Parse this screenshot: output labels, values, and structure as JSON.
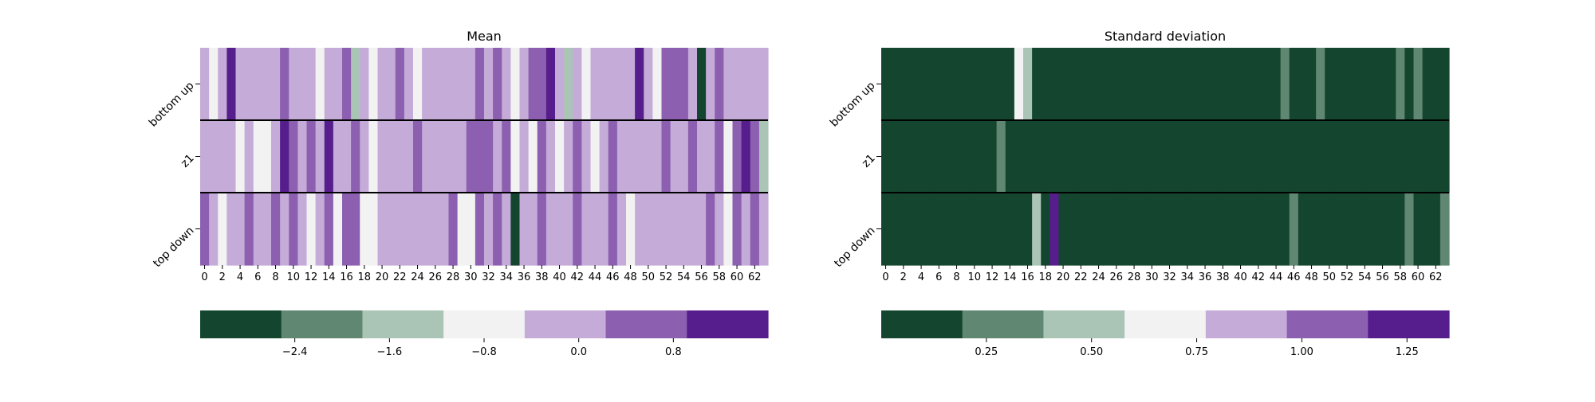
{
  "colors": {
    "palette": [
      "#14452f",
      "#5f8771",
      "#aac4b6",
      "#f2f2f2",
      "#c4abd8",
      "#8c5fb0",
      "#561d8c"
    ],
    "separator": "#000000"
  },
  "chart_data": [
    {
      "type": "heatmap",
      "title": "Mean",
      "rows": [
        "bottom up",
        "z1",
        "top down"
      ],
      "columns": [
        0,
        1,
        2,
        3,
        4,
        5,
        6,
        7,
        8,
        9,
        10,
        11,
        12,
        13,
        14,
        15,
        16,
        17,
        18,
        19,
        20,
        21,
        22,
        23,
        24,
        25,
        26,
        27,
        28,
        29,
        30,
        31,
        32,
        33,
        34,
        35,
        36,
        37,
        38,
        39,
        40,
        41,
        42,
        43,
        44,
        45,
        46,
        47,
        48,
        49,
        50,
        51,
        52,
        53,
        54,
        55,
        56,
        57,
        58,
        59,
        60,
        61,
        62,
        63
      ],
      "x_tick_labels": [
        "0",
        "2",
        "4",
        "6",
        "8",
        "10",
        "12",
        "14",
        "16",
        "18",
        "20",
        "22",
        "24",
        "26",
        "28",
        "30",
        "32",
        "34",
        "36",
        "38",
        "40",
        "42",
        "44",
        "46",
        "48",
        "50",
        "52",
        "54",
        "56",
        "58",
        "60",
        "62"
      ],
      "color_levels": [
        [
          4,
          3,
          4,
          6,
          4,
          4,
          4,
          4,
          4,
          5,
          4,
          4,
          4,
          3,
          4,
          4,
          5,
          2,
          4,
          3,
          4,
          4,
          5,
          4,
          3,
          4,
          4,
          4,
          4,
          4,
          4,
          5,
          4,
          5,
          4,
          3,
          4,
          5,
          5,
          6,
          4,
          2,
          4,
          3,
          4,
          4,
          4,
          4,
          4,
          6,
          4,
          3,
          5,
          5,
          5,
          4,
          0,
          4,
          5,
          4,
          4,
          4,
          4,
          4
        ],
        [
          4,
          4,
          4,
          4,
          3,
          4,
          3,
          3,
          4,
          6,
          5,
          4,
          5,
          4,
          6,
          4,
          4,
          5,
          4,
          3,
          4,
          4,
          4,
          4,
          5,
          4,
          4,
          4,
          4,
          4,
          5,
          5,
          5,
          4,
          5,
          3,
          4,
          3,
          5,
          4,
          3,
          4,
          5,
          4,
          3,
          4,
          5,
          4,
          4,
          4,
          4,
          4,
          5,
          4,
          4,
          5,
          4,
          4,
          5,
          3,
          5,
          6,
          5,
          2
        ],
        [
          5,
          4,
          3,
          4,
          4,
          5,
          4,
          4,
          5,
          4,
          5,
          4,
          3,
          4,
          5,
          3,
          5,
          5,
          3,
          3,
          4,
          4,
          4,
          4,
          4,
          4,
          4,
          4,
          5,
          3,
          3,
          5,
          4,
          5,
          4,
          0,
          4,
          4,
          5,
          4,
          4,
          4,
          5,
          4,
          4,
          4,
          5,
          4,
          3,
          4,
          4,
          4,
          4,
          4,
          4,
          4,
          4,
          5,
          4,
          3,
          5,
          4,
          5,
          4
        ]
      ],
      "colorbar": {
        "ticks": [
          "−2.4",
          "−1.6",
          "−0.8",
          "0.0",
          "0.8"
        ],
        "tick_values": [
          -2.4,
          -1.6,
          -0.8,
          0.0,
          0.8
        ],
        "range": [
          -3.2,
          1.6
        ],
        "levels": 7
      }
    },
    {
      "type": "heatmap",
      "title": "Standard deviation",
      "rows": [
        "bottom up",
        "z1",
        "top down"
      ],
      "columns": [
        0,
        1,
        2,
        3,
        4,
        5,
        6,
        7,
        8,
        9,
        10,
        11,
        12,
        13,
        14,
        15,
        16,
        17,
        18,
        19,
        20,
        21,
        22,
        23,
        24,
        25,
        26,
        27,
        28,
        29,
        30,
        31,
        32,
        33,
        34,
        35,
        36,
        37,
        38,
        39,
        40,
        41,
        42,
        43,
        44,
        45,
        46,
        47,
        48,
        49,
        50,
        51,
        52,
        53,
        54,
        55,
        56,
        57,
        58,
        59,
        60,
        61,
        62,
        63
      ],
      "x_tick_labels": [
        "0",
        "2",
        "4",
        "6",
        "8",
        "10",
        "12",
        "14",
        "16",
        "18",
        "20",
        "22",
        "24",
        "26",
        "28",
        "30",
        "32",
        "34",
        "36",
        "38",
        "40",
        "42",
        "44",
        "46",
        "48",
        "50",
        "52",
        "54",
        "56",
        "58",
        "60",
        "62"
      ],
      "color_levels": [
        [
          0,
          0,
          0,
          0,
          0,
          0,
          0,
          0,
          0,
          0,
          0,
          0,
          0,
          0,
          0,
          3,
          2,
          0,
          0,
          0,
          0,
          0,
          0,
          0,
          0,
          0,
          0,
          0,
          0,
          0,
          0,
          0,
          0,
          0,
          0,
          0,
          0,
          0,
          0,
          0,
          0,
          0,
          0,
          0,
          0,
          1,
          0,
          0,
          0,
          1,
          0,
          0,
          0,
          0,
          0,
          0,
          0,
          0,
          1,
          0,
          1,
          0,
          0,
          0
        ],
        [
          0,
          0,
          0,
          0,
          0,
          0,
          0,
          0,
          0,
          0,
          0,
          0,
          0,
          1,
          0,
          0,
          0,
          0,
          0,
          0,
          0,
          0,
          0,
          0,
          0,
          0,
          0,
          0,
          0,
          0,
          0,
          0,
          0,
          0,
          0,
          0,
          0,
          0,
          0,
          0,
          0,
          0,
          0,
          0,
          0,
          0,
          0,
          0,
          0,
          0,
          0,
          0,
          0,
          0,
          0,
          0,
          0,
          0,
          0,
          0,
          0,
          0,
          0,
          0
        ],
        [
          0,
          0,
          0,
          0,
          0,
          0,
          0,
          0,
          0,
          0,
          0,
          0,
          0,
          0,
          0,
          0,
          0,
          2,
          0,
          6,
          0,
          0,
          0,
          0,
          0,
          0,
          0,
          0,
          0,
          0,
          0,
          0,
          0,
          0,
          0,
          0,
          0,
          0,
          0,
          0,
          0,
          0,
          0,
          0,
          0,
          0,
          1,
          0,
          0,
          0,
          0,
          0,
          0,
          0,
          0,
          0,
          0,
          0,
          0,
          1,
          0,
          0,
          0,
          1
        ]
      ],
      "colorbar": {
        "ticks": [
          "0.25",
          "0.50",
          "0.75",
          "1.00",
          "1.25"
        ],
        "tick_values": [
          0.25,
          0.5,
          0.75,
          1.0,
          1.25
        ],
        "range": [
          0.0,
          1.35
        ],
        "levels": 7
      }
    }
  ]
}
